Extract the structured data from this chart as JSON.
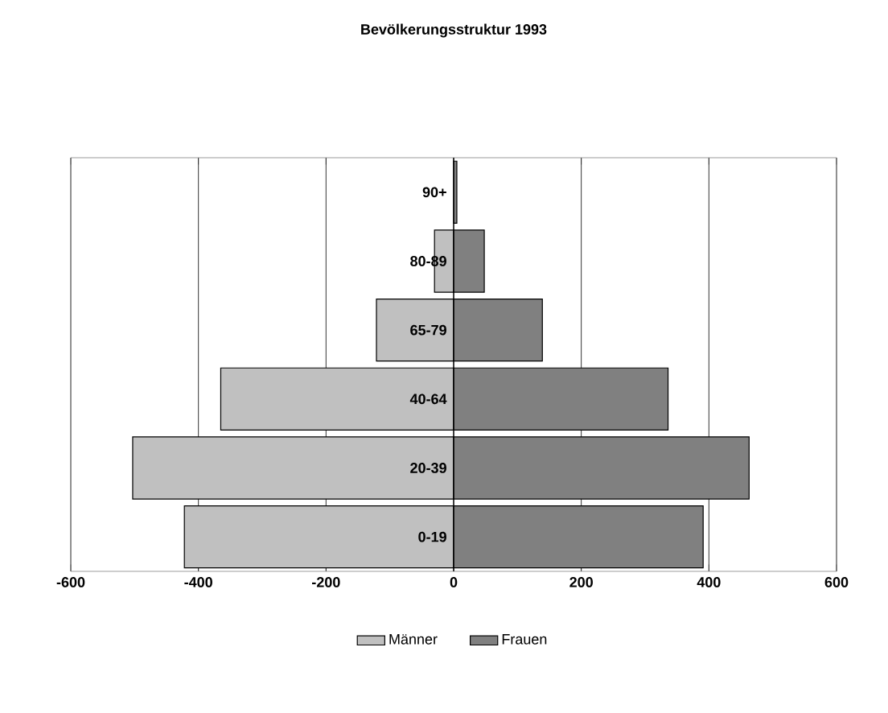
{
  "chart_data": {
    "type": "bar",
    "orientation": "horizontal",
    "title": "Bevölkerungsstruktur 1993",
    "categories": [
      "90+",
      "80-89",
      "65-79",
      "40-64",
      "20-39",
      "0-19"
    ],
    "series": [
      {
        "name": "Männer",
        "color": "#c0c0c0",
        "values": [
          null,
          -30,
          -121,
          -365,
          -503,
          -422
        ]
      },
      {
        "name": "Frauen",
        "color": "#808080",
        "values": [
          5,
          48,
          139,
          336,
          463,
          391
        ]
      }
    ],
    "stacked": true,
    "xlim": [
      -600,
      600
    ],
    "xticks": [
      -600,
      -400,
      -200,
      0,
      200,
      400,
      600
    ],
    "grid": "x",
    "legend": "bottom"
  }
}
